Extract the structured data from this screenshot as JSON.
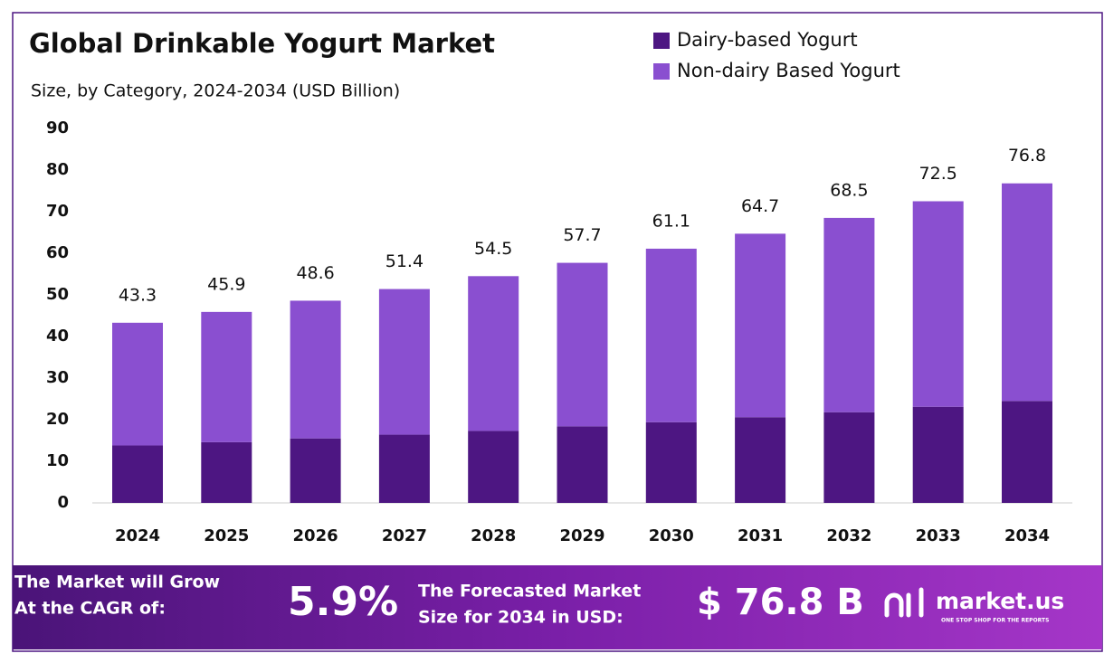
{
  "chart_data": {
    "type": "stacked_bar",
    "title": "Global Drinkable Yogurt Market",
    "subtitle": "Size, by Category, 2024-2034 (USD Billion)",
    "categories": [
      "2024",
      "2025",
      "2026",
      "2027",
      "2028",
      "2029",
      "2030",
      "2031",
      "2032",
      "2033",
      "2034"
    ],
    "series": [
      {
        "name": "Dairy-based Yogurt",
        "color": "#4d1682",
        "values": [
          13.8,
          14.6,
          15.5,
          16.4,
          17.3,
          18.4,
          19.4,
          20.6,
          21.8,
          23.1,
          24.5
        ]
      },
      {
        "name": "Non-dairy Based Yogurt",
        "color": "#8a4fd0",
        "values": [
          29.5,
          31.3,
          33.1,
          35.0,
          37.2,
          39.3,
          41.7,
          44.1,
          46.7,
          49.4,
          52.3
        ]
      }
    ],
    "totals": [
      43.3,
      45.9,
      48.6,
      51.4,
      54.5,
      57.7,
      61.1,
      64.7,
      68.5,
      72.5,
      76.8
    ],
    "ylim": [
      0,
      90
    ],
    "yticks": [
      0,
      10,
      20,
      30,
      40,
      50,
      60,
      70,
      80,
      90
    ],
    "grid": false,
    "legend": "top-right"
  },
  "footer": {
    "cagr_text": [
      "The Market will Grow",
      "At the CAGR of:"
    ],
    "cagr_value": "5.9%",
    "forecast_text": [
      "The Forecasted Market",
      "Size for 2034 in USD:"
    ],
    "forecast_value": "$ 76.8 B",
    "brand": "market.us",
    "tagline": "ONE STOP SHOP FOR THE REPORTS"
  }
}
